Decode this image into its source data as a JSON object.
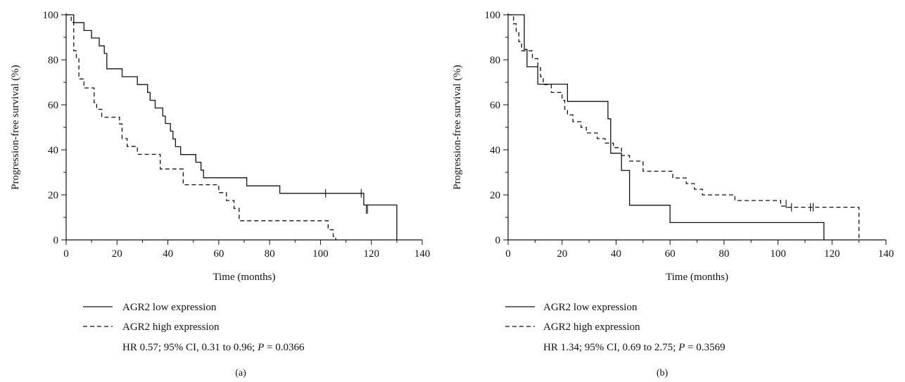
{
  "figure": {
    "panels": [
      {
        "label": "(a)",
        "legend": [
          "AGR2 low expression",
          "AGR2 high expression"
        ],
        "stats": {
          "pre": "HR 0.57; 95% CI, 0.31 to 0.96; ",
          "p_symbol": "P",
          "post": " = 0.0366"
        }
      },
      {
        "label": "(b)",
        "legend": [
          "AGR2 low expression",
          "AGR2 high expression"
        ],
        "stats": {
          "pre": "HR 1.34; 95% CI, 0.69 to 2.75; ",
          "p_symbol": "P",
          "post": " = 0.3569"
        }
      }
    ]
  },
  "chart_data": [
    {
      "type": "line",
      "subtype": "kaplan-meier step",
      "xlabel": "Time (months)",
      "ylabel": "Progression-free survival (%)",
      "xlim": [
        0,
        140
      ],
      "ylim": [
        0,
        100
      ],
      "xticks": [
        0,
        20,
        40,
        60,
        80,
        100,
        120,
        140
      ],
      "yticks": [
        0,
        20,
        40,
        60,
        80,
        100
      ],
      "grid": false,
      "legend_position": "below-left",
      "series": [
        {
          "name": "AGR2 low expression",
          "style": "solid",
          "color": "#111111",
          "points": [
            [
              0,
              100
            ],
            [
              3,
              100
            ],
            [
              3,
              96.5
            ],
            [
              7,
              96.5
            ],
            [
              7,
              93
            ],
            [
              10,
              93
            ],
            [
              10,
              89.7
            ],
            [
              13,
              89.7
            ],
            [
              13,
              86.2
            ],
            [
              15,
              86.2
            ],
            [
              15,
              82.8
            ],
            [
              16,
              82.8
            ],
            [
              16,
              76
            ],
            [
              22,
              76
            ],
            [
              22,
              72.5
            ],
            [
              28,
              72.5
            ],
            [
              28,
              69
            ],
            [
              32,
              69
            ],
            [
              32,
              65.5
            ],
            [
              33,
              65.5
            ],
            [
              33,
              62
            ],
            [
              35,
              62
            ],
            [
              35,
              58.6
            ],
            [
              38,
              58.6
            ],
            [
              38,
              55
            ],
            [
              39,
              55
            ],
            [
              39,
              51.7
            ],
            [
              41,
              51.7
            ],
            [
              41,
              48.3
            ],
            [
              42,
              48.3
            ],
            [
              42,
              44.8
            ],
            [
              43,
              44.8
            ],
            [
              43,
              41.4
            ],
            [
              45,
              41.4
            ],
            [
              45,
              37.9
            ],
            [
              51,
              37.9
            ],
            [
              51,
              34.5
            ],
            [
              53,
              34.5
            ],
            [
              53,
              31
            ],
            [
              54,
              31
            ],
            [
              54,
              27.6
            ],
            [
              71,
              27.6
            ],
            [
              71,
              24
            ],
            [
              84,
              24
            ],
            [
              84,
              20.7
            ],
            [
              117,
              20.7
            ],
            [
              117,
              15.5
            ],
            [
              130,
              15.5
            ],
            [
              130,
              0
            ]
          ],
          "censored": [
            [
              102,
              20.7
            ],
            [
              116,
              20.7
            ],
            [
              118,
              13.5
            ],
            [
              118.5,
              13.5
            ]
          ]
        },
        {
          "name": "AGR2 high expression",
          "style": "dashed",
          "color": "#111111",
          "points": [
            [
              0,
              100
            ],
            [
              2,
              100
            ],
            [
              2,
              96.6
            ],
            [
              3,
              96.6
            ],
            [
              3,
              84
            ],
            [
              4,
              84
            ],
            [
              4,
              80.5
            ],
            [
              5,
              80.5
            ],
            [
              5,
              71.5
            ],
            [
              7,
              71.5
            ],
            [
              7,
              67.5
            ],
            [
              11,
              67.5
            ],
            [
              11,
              61
            ],
            [
              12,
              61
            ],
            [
              12,
              58
            ],
            [
              14,
              58
            ],
            [
              14,
              54.5
            ],
            [
              21,
              54.5
            ],
            [
              21,
              51.5
            ],
            [
              22,
              51.5
            ],
            [
              22,
              45
            ],
            [
              24,
              45
            ],
            [
              24,
              41.5
            ],
            [
              28,
              41.5
            ],
            [
              28,
              38
            ],
            [
              37,
              38
            ],
            [
              37,
              31.5
            ],
            [
              46,
              31.5
            ],
            [
              46,
              24.5
            ],
            [
              60,
              24.5
            ],
            [
              60,
              21
            ],
            [
              63,
              21
            ],
            [
              63,
              17.5
            ],
            [
              66,
              17.5
            ],
            [
              66,
              14
            ],
            [
              68,
              14
            ],
            [
              68,
              8.5
            ],
            [
              103,
              8.5
            ],
            [
              103,
              4.5
            ],
            [
              105,
              4.5
            ],
            [
              105,
              1.5
            ],
            [
              106,
              1.5
            ],
            [
              106,
              0
            ]
          ],
          "censored": []
        }
      ]
    },
    {
      "type": "line",
      "subtype": "kaplan-meier step",
      "xlabel": "Time (months)",
      "ylabel": "Progression-free survival (%)",
      "xlim": [
        0,
        140
      ],
      "ylim": [
        0,
        100
      ],
      "xticks": [
        0,
        20,
        40,
        60,
        80,
        100,
        120,
        140
      ],
      "yticks": [
        0,
        20,
        40,
        60,
        80,
        100
      ],
      "grid": false,
      "legend_position": "below-left",
      "series": [
        {
          "name": "AGR2 low expression",
          "style": "solid",
          "color": "#111111",
          "points": [
            [
              0,
              100
            ],
            [
              6,
              100
            ],
            [
              6,
              84.6
            ],
            [
              7,
              84.6
            ],
            [
              7,
              76.9
            ],
            [
              11,
              76.9
            ],
            [
              11,
              69.2
            ],
            [
              22,
              69.2
            ],
            [
              22,
              61.5
            ],
            [
              37,
              61.5
            ],
            [
              37,
              53.8
            ],
            [
              38,
              53.8
            ],
            [
              38,
              38.5
            ],
            [
              42,
              38.5
            ],
            [
              42,
              30.8
            ],
            [
              45,
              30.8
            ],
            [
              45,
              15.4
            ],
            [
              60,
              15.4
            ],
            [
              60,
              7.7
            ],
            [
              117,
              7.7
            ],
            [
              117,
              0
            ]
          ],
          "censored": []
        },
        {
          "name": "AGR2 high expression",
          "style": "dashed",
          "color": "#111111",
          "points": [
            [
              0,
              100
            ],
            [
              2,
              100
            ],
            [
              2,
              96
            ],
            [
              3,
              96
            ],
            [
              3,
              92
            ],
            [
              4,
              92
            ],
            [
              4,
              88
            ],
            [
              5,
              88
            ],
            [
              5,
              84
            ],
            [
              9,
              84
            ],
            [
              9,
              80.5
            ],
            [
              11,
              80.5
            ],
            [
              11,
              76.5
            ],
            [
              12,
              76.5
            ],
            [
              12,
              72.5
            ],
            [
              13,
              72.5
            ],
            [
              13,
              69
            ],
            [
              16,
              69
            ],
            [
              16,
              65.5
            ],
            [
              20,
              65.5
            ],
            [
              20,
              62
            ],
            [
              21,
              62
            ],
            [
              21,
              58
            ],
            [
              22,
              58
            ],
            [
              22,
              55.5
            ],
            [
              24,
              55.5
            ],
            [
              24,
              52.5
            ],
            [
              27,
              52.5
            ],
            [
              27,
              50
            ],
            [
              29,
              50
            ],
            [
              29,
              47.5
            ],
            [
              33,
              47.5
            ],
            [
              33,
              45
            ],
            [
              36,
              45
            ],
            [
              36,
              43
            ],
            [
              39,
              43
            ],
            [
              39,
              41
            ],
            [
              42,
              41
            ],
            [
              42,
              37.5
            ],
            [
              45,
              37.5
            ],
            [
              45,
              35
            ],
            [
              50,
              35
            ],
            [
              50,
              30.5
            ],
            [
              61,
              30.5
            ],
            [
              61,
              27.5
            ],
            [
              66,
              27.5
            ],
            [
              66,
              25
            ],
            [
              69,
              25
            ],
            [
              69,
              22.5
            ],
            [
              72,
              22.5
            ],
            [
              72,
              20
            ],
            [
              84,
              20
            ],
            [
              84,
              17.5
            ],
            [
              101,
              17.5
            ],
            [
              101,
              15
            ],
            [
              103,
              15
            ],
            [
              103,
              14.5
            ],
            [
              130,
              14.5
            ],
            [
              130,
              0
            ]
          ],
          "censored": [
            [
              105,
              14.5
            ],
            [
              112,
              14.5
            ],
            [
              113,
              14.5
            ],
            [
              103,
              16
            ]
          ]
        }
      ]
    }
  ]
}
